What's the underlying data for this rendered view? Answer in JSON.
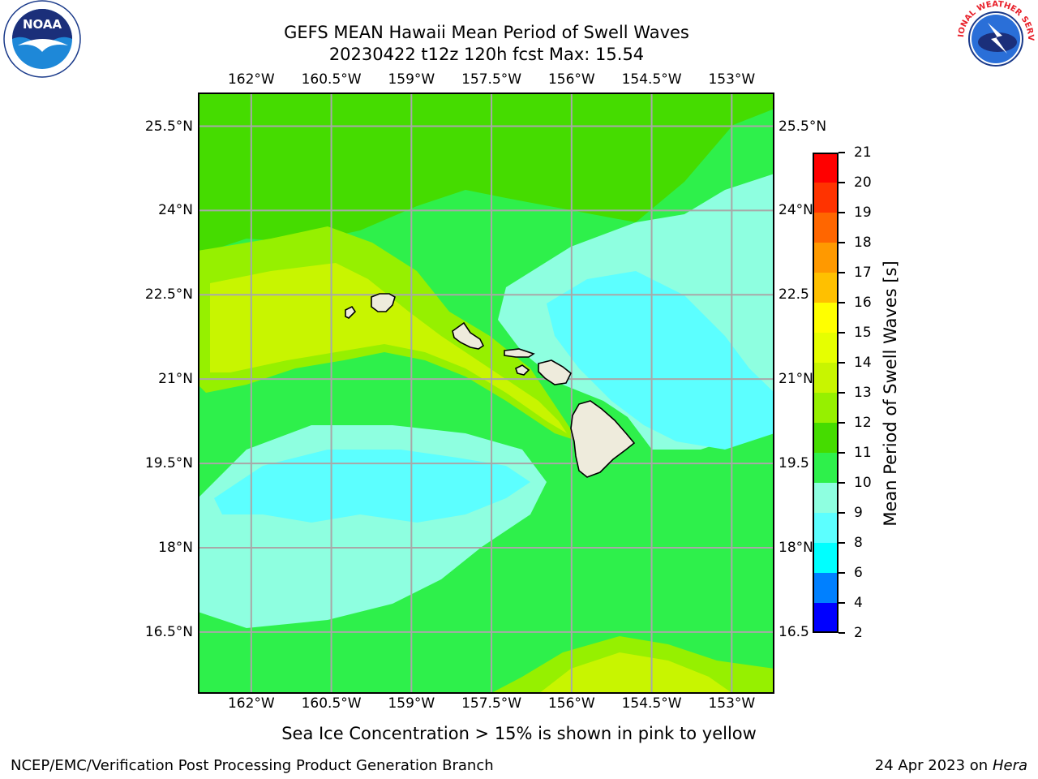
{
  "title": {
    "line1": "GEFS MEAN Hawaii Mean Period of Swell Waves",
    "line2": "20230422 t12z 120h fcst   Max: 15.54"
  },
  "logos": {
    "noaa": {
      "text": "NOAA",
      "icon": "noaa-logo"
    },
    "nws": {
      "text": "NATIONAL WEATHER SERVICE",
      "icon": "nws-logo"
    }
  },
  "map": {
    "lon_ticks": [
      "162°W",
      "160.5°W",
      "159°W",
      "157.5°W",
      "156°W",
      "154.5°W",
      "153°W"
    ],
    "lon_values": [
      -162,
      -160.5,
      -159,
      -157.5,
      -156,
      -154.5,
      -153
    ],
    "lat_ticks_left": [
      "25.5°N",
      "24°N",
      "22.5°N",
      "21°N",
      "19.5°N",
      "18°N",
      "16.5°N"
    ],
    "lat_ticks_right": [
      "25.5°N",
      "24°N",
      "22.5",
      "21°N",
      "19.5",
      "18°N",
      "16.5"
    ],
    "lat_values": [
      25.5,
      24,
      22.5,
      21,
      19.5,
      18,
      16.5
    ],
    "extent": {
      "lon_min": -163,
      "lon_max": -152.2,
      "lat_min": 15.4,
      "lat_max": 26.1
    },
    "grid": true,
    "land_color": "#eeebdc"
  },
  "colorbar": {
    "label": "Mean Period of Swell Waves [s]",
    "ticks": [
      "21",
      "20",
      "19",
      "18",
      "17",
      "16",
      "15",
      "14",
      "13",
      "12",
      "11",
      "10",
      "9",
      "8",
      "6",
      "4",
      "2"
    ],
    "colors": [
      "#ff0000",
      "#ff3300",
      "#ff6600",
      "#ff9900",
      "#ffc000",
      "#ffff00",
      "#e6ff00",
      "#c8f500",
      "#96f000",
      "#45dc00",
      "#2ef04b",
      "#8effe0",
      "#5cffff",
      "#00ffff",
      "#0080ff",
      "#0000ff"
    ]
  },
  "subtitle": "Sea Ice Concentration > 15% is shown in pink to yellow",
  "footer": {
    "left": "NCEP/EMC/Verification Post Processing Product Generation Branch",
    "right_date": "24 Apr 2023 on ",
    "right_host": "Hera"
  }
}
